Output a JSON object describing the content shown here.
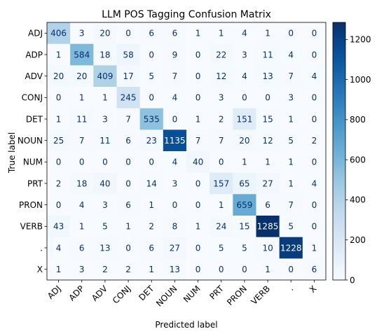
{
  "chart_data": {
    "type": "heatmap",
    "title": "LLM POS Tagging Confusion Matrix",
    "xlabel": "Predicted label",
    "ylabel": "True label",
    "x_categories": [
      "ADJ",
      "ADP",
      "ADV",
      "CONJ",
      "DET",
      "NOUN",
      "NUM",
      "PRT",
      "PRON",
      "VERB",
      ".",
      "X"
    ],
    "y_categories": [
      "ADJ",
      "ADP",
      "ADV",
      "CONJ",
      "DET",
      "NOUN",
      "NUM",
      "PRT",
      "PRON",
      "VERB",
      ".",
      "X"
    ],
    "values": [
      [
        406,
        3,
        20,
        0,
        6,
        6,
        1,
        1,
        4,
        1,
        0,
        0
      ],
      [
        1,
        584,
        18,
        58,
        0,
        9,
        0,
        22,
        3,
        11,
        4,
        0
      ],
      [
        20,
        20,
        409,
        17,
        5,
        7,
        0,
        12,
        4,
        13,
        7,
        4
      ],
      [
        0,
        1,
        1,
        245,
        0,
        4,
        0,
        3,
        0,
        0,
        3,
        0
      ],
      [
        1,
        11,
        3,
        7,
        535,
        0,
        1,
        2,
        151,
        15,
        1,
        0
      ],
      [
        25,
        7,
        11,
        6,
        23,
        1135,
        7,
        7,
        20,
        12,
        5,
        2
      ],
      [
        0,
        0,
        0,
        0,
        0,
        4,
        40,
        0,
        1,
        1,
        1,
        0
      ],
      [
        2,
        18,
        40,
        0,
        14,
        3,
        0,
        157,
        65,
        27,
        1,
        4
      ],
      [
        0,
        4,
        3,
        6,
        1,
        0,
        0,
        1,
        659,
        6,
        7,
        0
      ],
      [
        43,
        1,
        5,
        1,
        2,
        8,
        1,
        24,
        15,
        1285,
        5,
        0
      ],
      [
        4,
        6,
        13,
        0,
        6,
        27,
        0,
        5,
        5,
        10,
        1228,
        1
      ],
      [
        1,
        3,
        2,
        2,
        1,
        13,
        0,
        0,
        0,
        1,
        0,
        6
      ]
    ],
    "colormap": "Blues",
    "color_range": [
      0,
      1285
    ],
    "colorbar_ticks": [
      0,
      200,
      400,
      600,
      800,
      1000,
      1200
    ],
    "x_tick_rotation_deg": 45
  }
}
